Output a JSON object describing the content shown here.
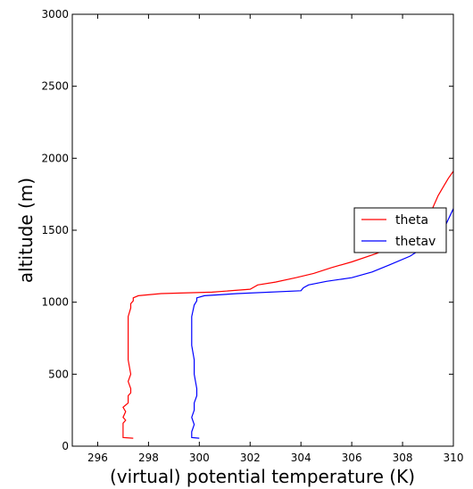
{
  "chart_data": {
    "type": "line",
    "xlabel": "(virtual) potential temperature (K)",
    "ylabel": "altitude (m)",
    "xlim": [
      295,
      310
    ],
    "ylim": [
      0,
      3000
    ],
    "xticks": [
      296,
      298,
      300,
      302,
      304,
      306,
      308,
      310
    ],
    "yticks": [
      0,
      500,
      1000,
      1500,
      2000,
      2500,
      3000
    ],
    "grid": false,
    "legend_position": "right",
    "series": [
      {
        "name": "theta",
        "color": "#ff0000",
        "points": [
          [
            297.4,
            55
          ],
          [
            297.0,
            60
          ],
          [
            297.0,
            80
          ],
          [
            297.0,
            120
          ],
          [
            297.0,
            160
          ],
          [
            297.1,
            180
          ],
          [
            297.0,
            200
          ],
          [
            297.1,
            240
          ],
          [
            297.0,
            270
          ],
          [
            297.2,
            300
          ],
          [
            297.2,
            330
          ],
          [
            297.2,
            350
          ],
          [
            297.3,
            370
          ],
          [
            297.3,
            400
          ],
          [
            297.2,
            450
          ],
          [
            297.3,
            500
          ],
          [
            297.2,
            600
          ],
          [
            297.2,
            700
          ],
          [
            297.2,
            800
          ],
          [
            297.2,
            900
          ],
          [
            297.3,
            960
          ],
          [
            297.3,
            990
          ],
          [
            297.4,
            1010
          ],
          [
            297.4,
            1030
          ],
          [
            297.6,
            1045
          ],
          [
            298.5,
            1060
          ],
          [
            300.5,
            1070
          ],
          [
            302.0,
            1090
          ],
          [
            302.3,
            1120
          ],
          [
            303.0,
            1140
          ],
          [
            303.8,
            1170
          ],
          [
            304.5,
            1200
          ],
          [
            305.2,
            1240
          ],
          [
            306.0,
            1280
          ],
          [
            307.0,
            1340
          ],
          [
            308.0,
            1420
          ],
          [
            308.6,
            1500
          ],
          [
            309.0,
            1580
          ],
          [
            309.2,
            1660
          ],
          [
            309.4,
            1740
          ],
          [
            309.6,
            1800
          ],
          [
            309.8,
            1860
          ],
          [
            310.0,
            1910
          ]
        ]
      },
      {
        "name": "thetav",
        "color": "#0000ff",
        "points": [
          [
            300.0,
            55
          ],
          [
            299.7,
            60
          ],
          [
            299.7,
            100
          ],
          [
            299.8,
            150
          ],
          [
            299.7,
            200
          ],
          [
            299.8,
            250
          ],
          [
            299.8,
            300
          ],
          [
            299.9,
            350
          ],
          [
            299.9,
            400
          ],
          [
            299.8,
            500
          ],
          [
            299.8,
            600
          ],
          [
            299.7,
            700
          ],
          [
            299.7,
            800
          ],
          [
            299.7,
            900
          ],
          [
            299.8,
            980
          ],
          [
            299.9,
            1010
          ],
          [
            299.9,
            1030
          ],
          [
            300.2,
            1045
          ],
          [
            301.5,
            1060
          ],
          [
            304.0,
            1080
          ],
          [
            304.1,
            1100
          ],
          [
            304.3,
            1120
          ],
          [
            305.0,
            1145
          ],
          [
            306.0,
            1170
          ],
          [
            306.8,
            1210
          ],
          [
            307.5,
            1260
          ],
          [
            308.3,
            1320
          ],
          [
            309.0,
            1400
          ],
          [
            309.6,
            1500
          ],
          [
            310.0,
            1650
          ]
        ]
      }
    ]
  }
}
